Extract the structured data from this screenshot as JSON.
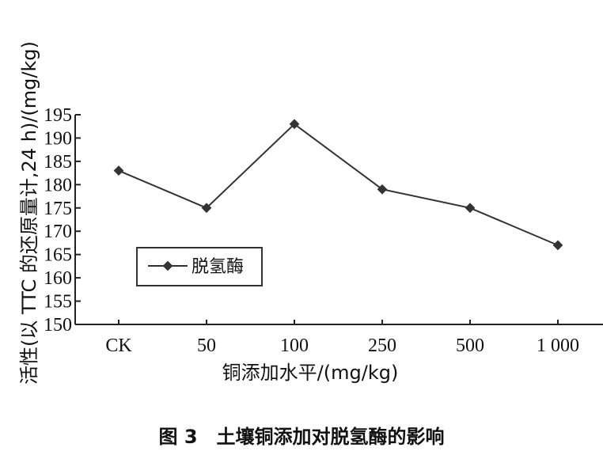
{
  "chart_data": {
    "type": "line",
    "categories": [
      "CK",
      "50",
      "100",
      "250",
      "500",
      "1 000"
    ],
    "series": [
      {
        "name": "脱氢酶",
        "values": [
          183,
          175,
          193,
          179,
          175,
          167
        ]
      }
    ],
    "title": "",
    "xlabel": "铜添加水平/(mg/kg)",
    "ylabel": "活性(以 TTC 的还原量计,24 h)/(mg/kg)",
    "ylim": [
      150,
      195
    ],
    "yticks": [
      150,
      155,
      160,
      165,
      170,
      175,
      180,
      185,
      190,
      195
    ],
    "grid": false,
    "legend": "center-left",
    "color": "#333333"
  },
  "figure_caption": "图 3　土壤铜添加对脱氢酶的影响"
}
